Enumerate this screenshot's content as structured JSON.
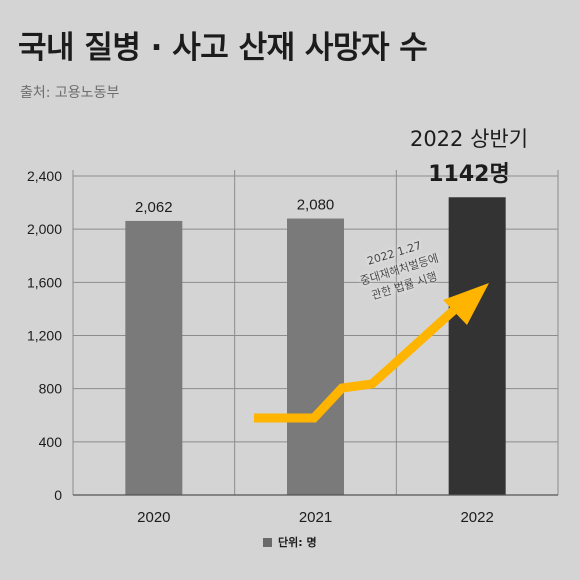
{
  "header": {
    "title": "국내 질병 · 사고 산재 사망자 수",
    "source": "출처: 고용노동부"
  },
  "annotation": {
    "highlight_period": "2022 상반기",
    "highlight_value": "1142명",
    "note_lines": [
      "2022 1.27",
      "중대재해처벌등에",
      "관한 법률 시행"
    ]
  },
  "legend": {
    "label": "단위: 명"
  },
  "colors": {
    "background": "#d4d4d4",
    "bar": "#7a7a7a",
    "highlight_bar": "#333333",
    "arrow": "#ffb400",
    "grid": "#8c8c8c"
  },
  "chart_data": {
    "type": "bar",
    "categories": [
      "2020",
      "2021",
      "2022"
    ],
    "values": [
      2062,
      2080,
      2240
    ],
    "data_labels": [
      "2,062",
      "2,080",
      ""
    ],
    "highlight_index": 2,
    "ylim": [
      0,
      2400
    ],
    "yticks": [
      0,
      400,
      800,
      1200,
      1600,
      2000,
      2400
    ],
    "ytick_labels": [
      "0",
      "400",
      "800",
      "1,200",
      "1,600",
      "2,000",
      "2,400"
    ],
    "grid": true,
    "xlabel": "",
    "ylabel": ""
  }
}
